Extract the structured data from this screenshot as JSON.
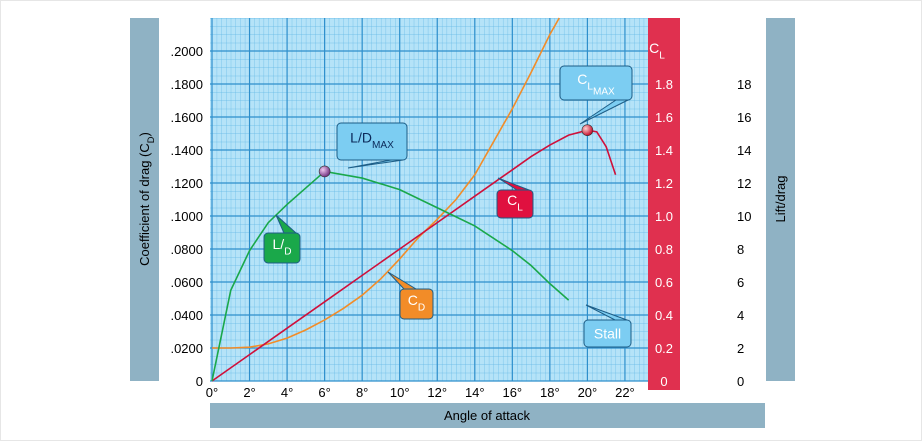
{
  "chart_data": {
    "type": "line",
    "xlabel": [
      {
        "t": "Angle of attack"
      }
    ],
    "ylabel": [
      {
        "t": "Coefficient of drag (C"
      },
      {
        "t": "D",
        "sub": 1
      },
      {
        "t": ")"
      }
    ],
    "y2label": [
      {
        "t": "Lift/drag"
      }
    ],
    "y3label": [
      {
        "t": "C"
      },
      {
        "t": "L",
        "sub": 1
      }
    ],
    "xlim": [
      0,
      24
    ],
    "xticks": [
      {
        "value": 0,
        "label": "0°"
      },
      {
        "value": 2,
        "label": "2°"
      },
      {
        "value": 4,
        "label": "4°"
      },
      {
        "value": 6,
        "label": "6°"
      },
      {
        "value": 8,
        "label": "8°"
      },
      {
        "value": 10,
        "label": "10°"
      },
      {
        "value": 12,
        "label": "12°"
      },
      {
        "value": 14,
        "label": "14°"
      },
      {
        "value": 16,
        "label": "16°"
      },
      {
        "value": 18,
        "label": "18°"
      },
      {
        "value": 20,
        "label": "20°"
      },
      {
        "value": 22,
        "label": "22°"
      }
    ],
    "ylim": [
      0,
      0.22
    ],
    "yticks": [
      0,
      {
        "value": 0.02,
        "label": ".0200"
      },
      {
        "value": 0.04,
        "label": ".0400"
      },
      {
        "value": 0.06,
        "label": ".0600"
      },
      {
        "value": 0.08,
        "label": ".0800"
      },
      {
        "value": 0.1,
        "label": ".1000"
      },
      {
        "value": 0.12,
        "label": ".1200"
      },
      {
        "value": 0.14,
        "label": ".1400"
      },
      {
        "value": 0.16,
        "label": ".1600"
      },
      {
        "value": 0.18,
        "label": ".1800"
      },
      {
        "value": 0.2,
        "label": ".2000"
      }
    ],
    "y2lim": [
      0,
      22
    ],
    "y2ticks": [
      0,
      2,
      4,
      6,
      8,
      10,
      12,
      14,
      16,
      18
    ],
    "y3lim": [
      0,
      2.2
    ],
    "y3ticks": [
      0,
      0.2,
      0.4,
      0.6,
      0.8,
      {
        "value": 1,
        "label": "1.0"
      },
      1.2,
      1.4,
      1.6,
      1.8
    ],
    "grid": true,
    "series": [
      {
        "color": "#f28c28",
        "axis": "y",
        "x": [
          0,
          1,
          2,
          3,
          4,
          5,
          6,
          7,
          8,
          9,
          10,
          11,
          12,
          13,
          14,
          15,
          16,
          17,
          18,
          18.5
        ],
        "values": [
          0.02,
          0.02,
          0.0205,
          0.0225,
          0.026,
          0.031,
          0.037,
          0.044,
          0.052,
          0.062,
          0.074,
          0.087,
          0.098,
          0.11,
          0.125,
          0.145,
          0.165,
          0.187,
          0.21,
          0.22
        ]
      },
      {
        "color": "#d0103a",
        "axis": "y3",
        "x": [
          0,
          2,
          4,
          6,
          8,
          10,
          12,
          14,
          16,
          17,
          18,
          19,
          20,
          20.5,
          21,
          21.5
        ],
        "values": [
          0,
          0.16,
          0.32,
          0.48,
          0.64,
          0.8,
          0.96,
          1.12,
          1.28,
          1.36,
          1.43,
          1.49,
          1.52,
          1.51,
          1.42,
          1.25
        ]
      },
      {
        "color": "#1aa84a",
        "axis": "y2",
        "x": [
          0,
          1,
          2,
          3,
          4,
          5,
          6,
          8,
          10,
          12,
          14,
          16,
          17,
          18,
          19
        ],
        "values": [
          0,
          5.5,
          7.9,
          9.6,
          10.7,
          11.7,
          12.7,
          12.3,
          11.6,
          10.5,
          9.4,
          7.9,
          7.0,
          5.9,
          4.9
        ]
      }
    ],
    "annotations": [
      {
        "parts": [
          {
            "t": "L/D"
          },
          {
            "t": "MAX",
            "sub": 1
          }
        ],
        "color": "#7ccdf2"
      },
      {
        "parts": [
          {
            "t": "C"
          },
          {
            "t": "L",
            "sub": 1
          },
          {
            "t": "MAX",
            "sub": 2
          }
        ],
        "color": "#7ccdf2"
      },
      {
        "parts": [
          {
            "t": "C"
          },
          {
            "t": "L",
            "sub": 1
          }
        ],
        "color": "#e0103f"
      },
      {
        "parts": [
          {
            "t": "L/"
          },
          {
            "t": "D",
            "sub": 1
          }
        ],
        "color": "#1aa84a"
      },
      {
        "parts": [
          {
            "t": "C"
          },
          {
            "t": "D",
            "sub": 1
          }
        ],
        "color": "#f28c28"
      },
      {
        "parts": [
          {
            "t": "Stall"
          }
        ],
        "color": "#7ccdf2"
      }
    ]
  }
}
